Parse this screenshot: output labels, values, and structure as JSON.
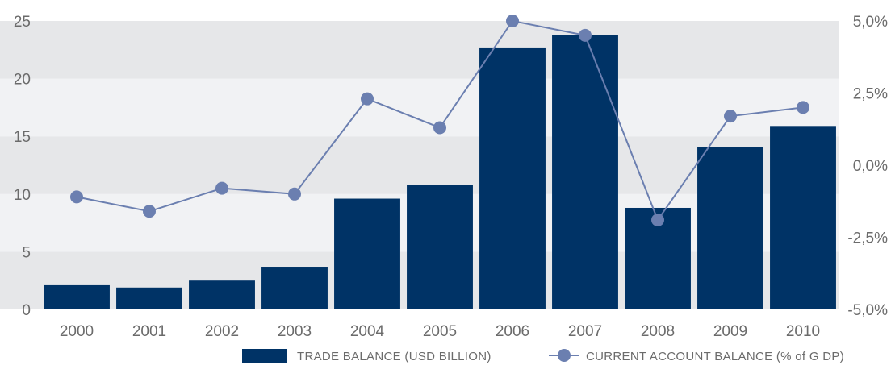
{
  "chart_data": {
    "type": "bar+line",
    "categories": [
      "2000",
      "2001",
      "2002",
      "2003",
      "2004",
      "2005",
      "2006",
      "2007",
      "2008",
      "2009",
      "2010"
    ],
    "series": [
      {
        "name": "TRADE BALANCE (USD BILLION)",
        "type": "bar",
        "axis": "left",
        "color": "#003366",
        "values": [
          2.1,
          1.9,
          2.5,
          3.7,
          9.6,
          10.8,
          22.7,
          23.8,
          8.8,
          14.1,
          15.9
        ]
      },
      {
        "name": "CURRENT ACCOUNT BALANCE (% of G DP)",
        "type": "line",
        "axis": "right",
        "color": "#6b7fb0",
        "values": [
          -1.1,
          -1.6,
          -0.8,
          -1.0,
          2.3,
          1.3,
          5.0,
          4.5,
          -1.9,
          1.7,
          2.0
        ]
      }
    ],
    "left_axis": {
      "min": 0,
      "max": 25,
      "ticks": [
        0,
        5,
        10,
        15,
        20,
        25
      ],
      "tick_labels": [
        "0",
        "5",
        "10",
        "15",
        "20",
        "25"
      ]
    },
    "right_axis": {
      "min": -5,
      "max": 5,
      "ticks": [
        -5,
        -2.5,
        0,
        2.5,
        5
      ],
      "tick_labels": [
        "-5,0%",
        "-2,5%",
        "0,0%",
        "2,5%",
        "5,0%"
      ]
    },
    "background_bands": true,
    "legend_position": "bottom-right",
    "title": "",
    "xlabel": "",
    "ylabel": ""
  }
}
